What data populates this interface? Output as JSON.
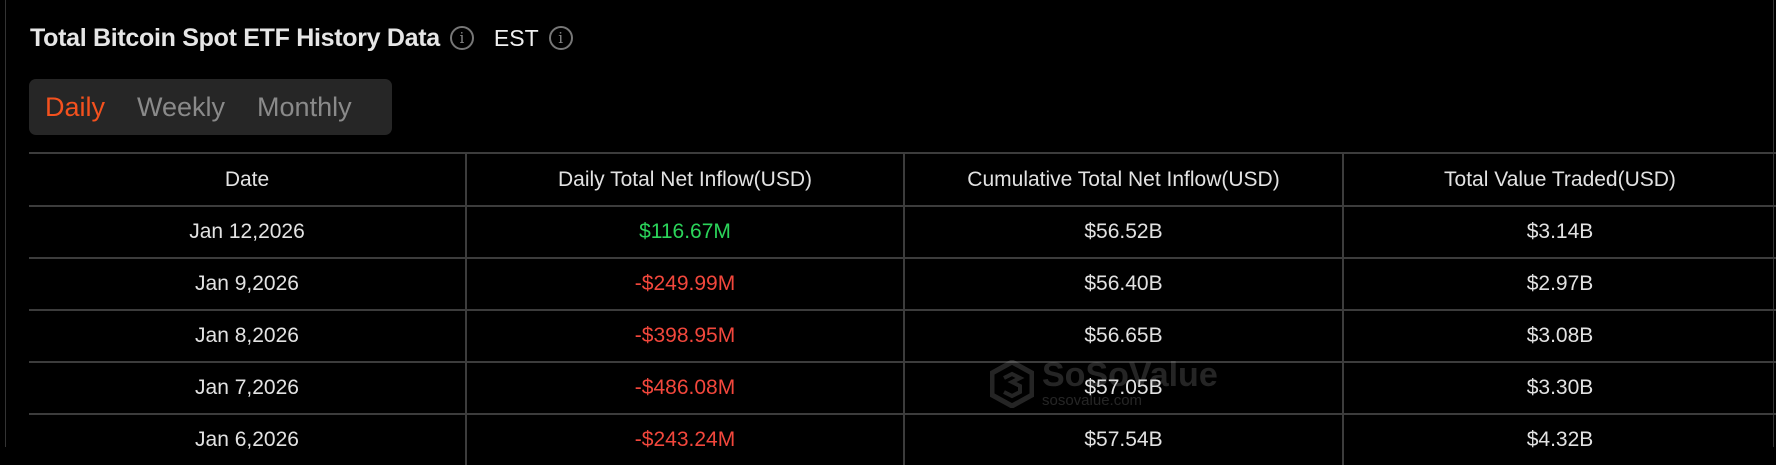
{
  "header": {
    "title": "Total Bitcoin Spot ETF History Data",
    "timezone": "EST",
    "info_icon": "info-icon"
  },
  "tabs": [
    {
      "label": "Daily",
      "active": true
    },
    {
      "label": "Weekly",
      "active": false
    },
    {
      "label": "Monthly",
      "active": false
    }
  ],
  "colors": {
    "accent": "#f4511e",
    "positive": "#2bd45a",
    "negative": "#f2473c",
    "background": "#000000"
  },
  "table": {
    "columns": [
      "Date",
      "Daily Total Net Inflow(USD)",
      "Cumulative Total Net Inflow(USD)",
      "Total Value Traded(USD)"
    ],
    "rows": [
      {
        "date": "Jan 12,2026",
        "net_inflow": "$116.67M",
        "sign": "pos",
        "cumulative": "$56.52B",
        "traded": "$3.14B"
      },
      {
        "date": "Jan 9,2026",
        "net_inflow": "-$249.99M",
        "sign": "neg",
        "cumulative": "$56.40B",
        "traded": "$2.97B"
      },
      {
        "date": "Jan 8,2026",
        "net_inflow": "-$398.95M",
        "sign": "neg",
        "cumulative": "$56.65B",
        "traded": "$3.08B"
      },
      {
        "date": "Jan 7,2026",
        "net_inflow": "-$486.08M",
        "sign": "neg",
        "cumulative": "$57.05B",
        "traded": "$3.30B"
      },
      {
        "date": "Jan 6,2026",
        "net_inflow": "-$243.24M",
        "sign": "neg",
        "cumulative": "$57.54B",
        "traded": "$4.32B"
      }
    ]
  },
  "watermark": {
    "name": "SoSoValue",
    "url": "sosovalue.com"
  }
}
